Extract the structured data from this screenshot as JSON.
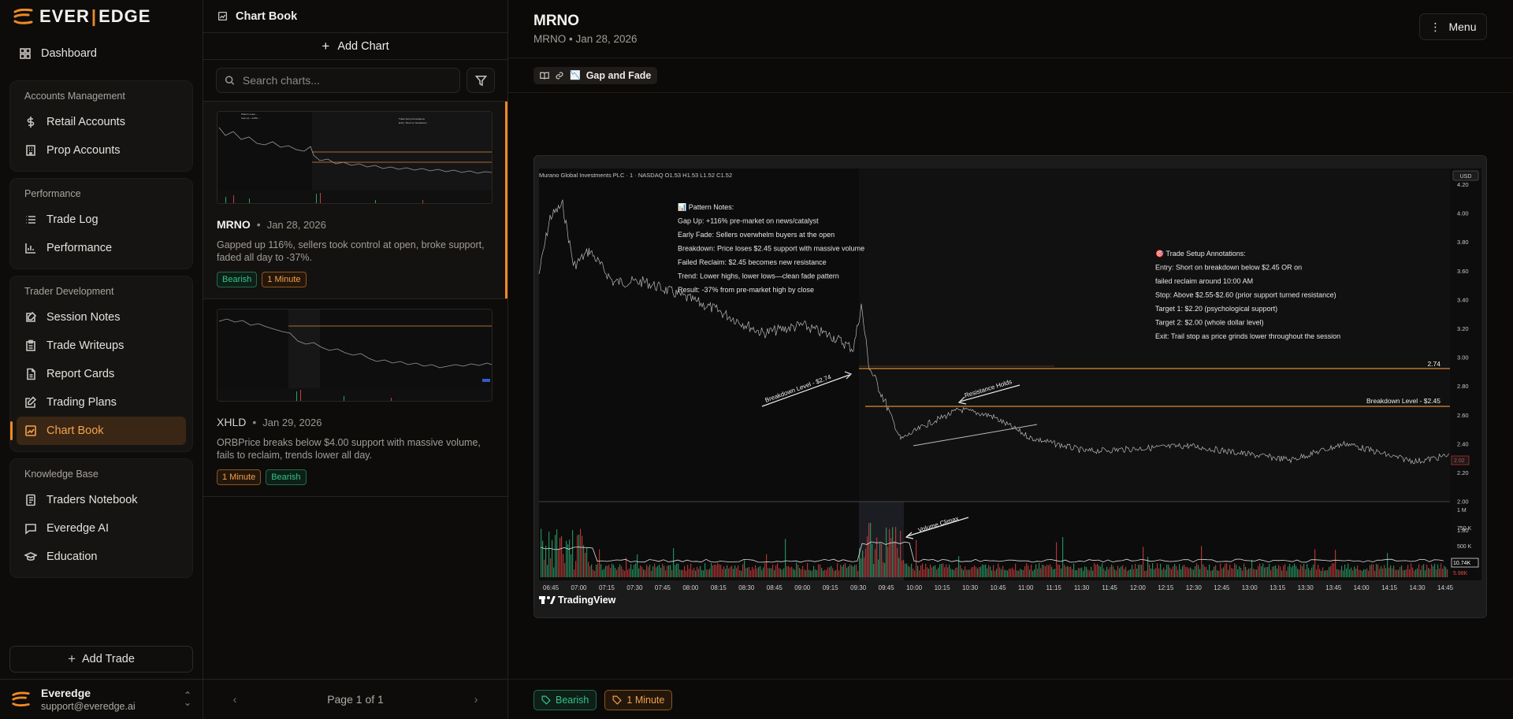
{
  "brand": {
    "name_left": "EVER",
    "name_right": "EDGE",
    "accent": "#f08a24"
  },
  "nav": {
    "dashboard": "Dashboard",
    "groups": [
      {
        "title": "Accounts Management",
        "items": [
          {
            "label": "Retail Accounts",
            "icon": "dollar-icon"
          },
          {
            "label": "Prop Accounts",
            "icon": "building-icon"
          }
        ]
      },
      {
        "title": "Performance",
        "items": [
          {
            "label": "Trade Log",
            "icon": "list-icon"
          },
          {
            "label": "Performance",
            "icon": "bar-chart-icon"
          }
        ]
      },
      {
        "title": "Trader Development",
        "items": [
          {
            "label": "Session Notes",
            "icon": "note-edit-icon"
          },
          {
            "label": "Trade Writeups",
            "icon": "clipboard-icon"
          },
          {
            "label": "Report Cards",
            "icon": "file-icon"
          },
          {
            "label": "Trading Plans",
            "icon": "pencil-square-icon"
          },
          {
            "label": "Chart Book",
            "icon": "chart-image-icon",
            "active": true
          }
        ]
      },
      {
        "title": "Knowledge Base",
        "items": [
          {
            "label": "Traders Notebook",
            "icon": "notebook-icon"
          },
          {
            "label": "Everedge AI",
            "icon": "chat-icon"
          },
          {
            "label": "Education",
            "icon": "graduation-cap-icon"
          }
        ]
      }
    ],
    "add_trade": "Add Trade"
  },
  "user": {
    "name": "Everedge",
    "email": "support@everedge.ai"
  },
  "list": {
    "title": "Chart Book",
    "add_chart": "Add Chart",
    "search_placeholder": "Search charts...",
    "cards": [
      {
        "symbol": "MRNO",
        "date": "Jan 28, 2026",
        "description": "Gapped up 116%, sellers took control at open, broke support, faded all day to -37%.",
        "tags": [
          "Bearish",
          "1 Minute"
        ]
      },
      {
        "symbol": "XHLD",
        "date": "Jan 29, 2026",
        "description": "ORBPrice breaks below $4.00 support with massive volume, fails to reclaim, trends lower all day.",
        "tags": [
          "1 Minute",
          "Bearish"
        ]
      }
    ],
    "pager": "Page 1 of 1"
  },
  "main": {
    "title": "MRNO",
    "subtitle": "MRNO • Jan 28, 2026",
    "menu": "Menu",
    "crumb": "Gap and Fade",
    "tags": [
      "Bearish",
      "1 Minute"
    ]
  },
  "chart": {
    "header": "Murano Global Investments PLC · 1 · NASDAQ  O1.53  H1.53  L1.52  C1.52",
    "currency": "USD",
    "pattern_notes": [
      "📊 Pattern Notes:",
      "Gap Up: +116% pre-market on news/catalyst",
      "Early Fade: Sellers overwhelm buyers at the open",
      "Breakdown: Price loses $2.45 support with massive volume",
      "Failed Reclaim: $2.45 becomes new resistance",
      "Trend: Lower highs, lower lows—clean fade pattern",
      "Result: -37% from pre-market high by close"
    ],
    "setup_notes": [
      "🎯 Trade Setup Annotations:",
      "Entry: Short on breakdown below $2.45 OR on",
      "failed reclaim around 10:00 AM",
      "Stop: Above $2.55-$2.60 (prior support turned resistance)",
      "Target 1: $2.20 (psychological support)",
      "Target 2: $2.00 (whole dollar level)",
      "Exit: Trail stop as price grinds lower throughout the session"
    ],
    "level_274": "2.74",
    "level_245": "Breakdown Level - $2.45",
    "label_breakdown_274": "Breakdown Level - $2.74",
    "label_resistance": "Resistance Holds",
    "label_volume": "Volume Climax",
    "price_ticks": [
      "4.20",
      "4.00",
      "3.80",
      "3.60",
      "3.40",
      "3.20",
      "3.00",
      "2.80",
      "2.60",
      "2.40",
      "2.20",
      "2.00",
      "1.80"
    ],
    "last_price": "2.02",
    "volume_ticks": [
      "1 M",
      "750 K",
      "500 K",
      "250 K"
    ],
    "volume_badge_1": "10.74K",
    "volume_badge_2": "5.98K",
    "time_ticks": [
      "06:45",
      "07:00",
      "07:15",
      "07:30",
      "07:45",
      "08:00",
      "08:15",
      "08:30",
      "08:45",
      "09:00",
      "09:15",
      "09:30",
      "09:45",
      "10:00",
      "10:15",
      "10:30",
      "10:45",
      "11:00",
      "11:15",
      "11:30",
      "11:45",
      "12:00",
      "12:15",
      "12:30",
      "12:45",
      "13:00",
      "13:15",
      "13:30",
      "13:45",
      "14:00",
      "14:15",
      "14:30",
      "14:45"
    ],
    "watermark": "TradingView"
  }
}
